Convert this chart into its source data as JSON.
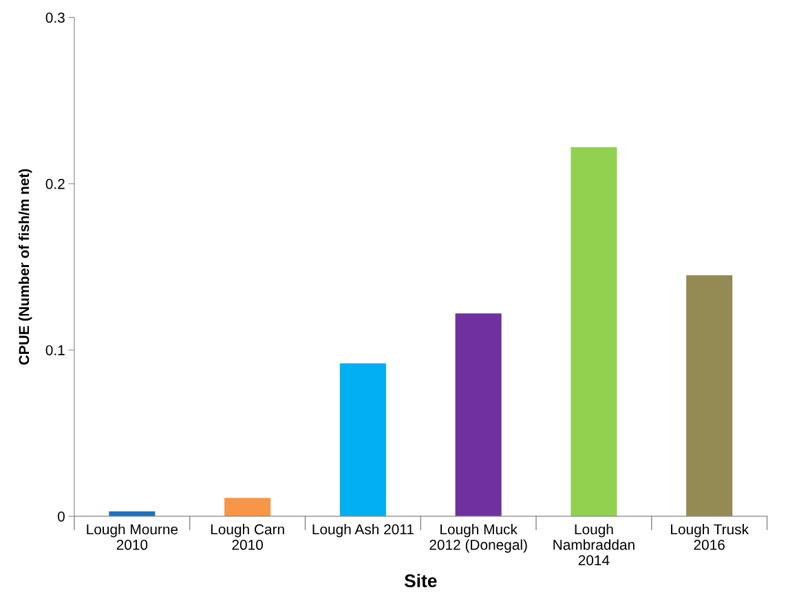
{
  "chart_data": {
    "type": "bar",
    "xlabel": "Site",
    "ylabel": "CPUE (Number of fish/m net)",
    "categories": [
      "Lough Mourne\n2010",
      "Lough Carn\n2010",
      "Lough Ash 2011",
      "Lough Muck\n2012 (Donegal)",
      "Lough\nNambraddan\n2014",
      "Lough Trusk\n2016"
    ],
    "values": [
      0.003,
      0.011,
      0.092,
      0.122,
      0.222,
      0.145
    ],
    "colors": [
      "#1f6fbd",
      "#f79646",
      "#00b0f0",
      "#7030a0",
      "#92d050",
      "#948a54"
    ],
    "ylim": [
      0,
      0.3
    ],
    "yticks": [
      {
        "value": 0,
        "label": "0"
      },
      0.1,
      0.2,
      0.3
    ],
    "grid": false,
    "legend": false
  }
}
